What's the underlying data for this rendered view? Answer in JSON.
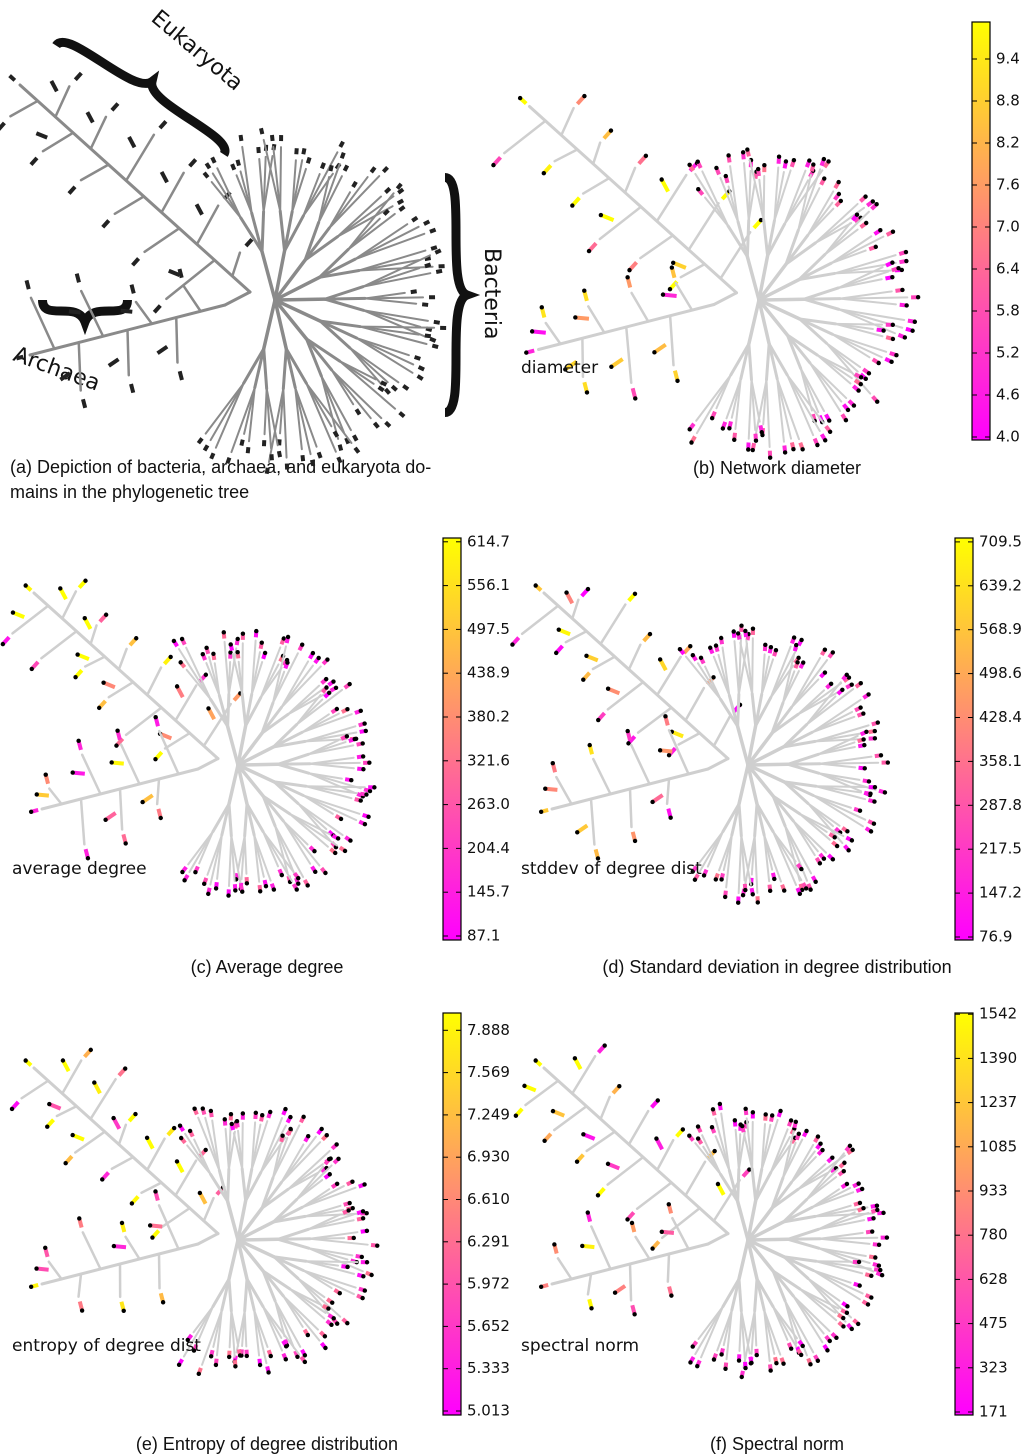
{
  "panels": [
    {
      "caption_lines": [
        "(a) Depiction of bacteria, archaea, and eukaryota do-",
        "mains in the phylogenetic tree"
      ],
      "labels": [
        "Eukaryota",
        "Bacteria",
        "Archaea"
      ]
    },
    {
      "caption": "(b) Network diameter",
      "metric": "diameter",
      "colorbar_ticks": [
        "4.0",
        "4.6",
        "5.2",
        "5.8",
        "6.4",
        "7.0",
        "7.6",
        "8.2",
        "8.8",
        "9.4"
      ]
    },
    {
      "caption": "(c) Average degree",
      "metric": "average degree",
      "colorbar_ticks": [
        "87.1",
        "145.7",
        "204.4",
        "263.0",
        "321.6",
        "380.2",
        "438.9",
        "497.5",
        "556.1",
        "614.7"
      ]
    },
    {
      "caption": "(d) Standard deviation in degree distribution",
      "metric": "stddev of degree dist",
      "colorbar_ticks": [
        "76.9",
        "147.2",
        "217.5",
        "287.8",
        "358.1",
        "428.4",
        "498.6",
        "568.9",
        "639.2",
        "709.5"
      ]
    },
    {
      "caption": "(e) Entropy of degree distribution",
      "metric": "entropy of degree dist",
      "colorbar_ticks": [
        "5.013",
        "5.333",
        "5.652",
        "5.972",
        "6.291",
        "6.610",
        "6.930",
        "7.249",
        "7.569",
        "7.888"
      ]
    },
    {
      "caption": "(f) Spectral norm",
      "metric": "spectral norm",
      "colorbar_ticks": [
        "171",
        "323",
        "475",
        "628",
        "780",
        "933",
        "1085",
        "1237",
        "1390",
        "1542"
      ]
    }
  ]
}
